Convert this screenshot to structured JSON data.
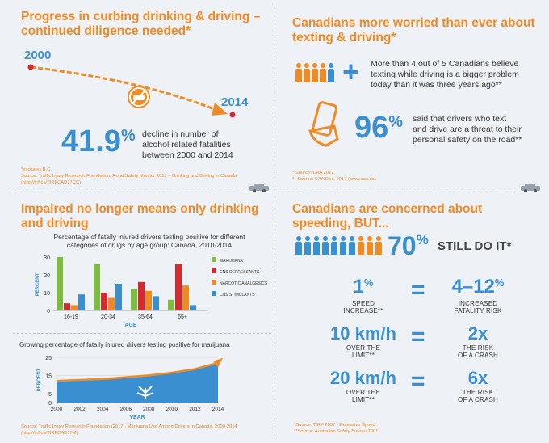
{
  "q1": {
    "title_l1": "Progress in curbing drinking & driving –",
    "title_l2": "continued diligence needed*",
    "year_start": "2000",
    "year_end": "2014",
    "stat": "41.9",
    "stat_pct": "%",
    "desc_l1": "decline in number of",
    "desc_l2": "alcohol related fatalities",
    "desc_l3": "between 2000 and 2014",
    "src_l1": "*excludes B.C.",
    "src_l2": "Source: Traffic Injury Research Foundation, Road Safety Monitor 2017 – Drinking and Driving in Canada",
    "src_l3": "(http://tirf.ca/TIRFCAD17CC)"
  },
  "q2": {
    "title_l1": "Canadians more worried than ever about",
    "title_l2": "texting & driving*",
    "plus": "+",
    "text1_l1": "More than 4 out of 5 Canadians believe",
    "text1_l2": "texting while driving is a bigger problem",
    "text1_l3": "today than it was three years ago**",
    "stat": "96",
    "stat_pct": "%",
    "text2_l1": "said that drivers who text",
    "text2_l2": "and drive are a threat to their",
    "text2_l3": "personal safety on the road**",
    "src_l1": "* Source: CAA 2017",
    "src_l2": "** Source: CAA Dec. 2017 (www.caa.ca)"
  },
  "q3": {
    "title_l1": "Impaired no longer means only drinking",
    "title_l2": "and driving",
    "chart1_title_l1": "Percentage of fatally injured drivers testing positive for different",
    "chart1_title_l2": "categories of drugs by age group: Canada, 2010-2014",
    "chart2_title": "Growing percentage of fatally injured drivers testing positive for marijuana",
    "src_l1": "Source: Traffic Injury Research Foundation (2017). Marijuana Use Among Drivers in Canada, 2000-2014",
    "src_l2": "(http://tirf.ca/TIRFCAD17M)"
  },
  "q4": {
    "title_l1": "Canadians are concerned about",
    "title_l2": "speeding, BUT...",
    "stat": "70",
    "stat_pct": "%",
    "still": "STILL DO IT*",
    "row1_left_num": "1",
    "row1_left_pct": "%",
    "row1_left_cap1": "SPEED",
    "row1_left_cap2": "INCREASE**",
    "row1_right_num": "4–12",
    "row1_right_pct": "%",
    "row1_right_cap1": "INCREASED",
    "row1_right_cap2": "FATALITY RISK",
    "row2_left_num": "10 km/h",
    "row2_left_cap1": "OVER THE",
    "row2_left_cap2": "LIMIT**",
    "row2_right_num": "2x",
    "row2_right_cap1": "THE RISK",
    "row2_right_cap2": "OF A CRASH",
    "row3_left_num": "20 km/h",
    "row3_left_cap1": "OVER THE",
    "row3_left_cap2": "LIMIT**",
    "row3_right_num": "6x",
    "row3_right_cap1": "THE RISK",
    "row3_right_cap2": "OF A CRASH",
    "eq": "=",
    "src_l1": "*Source: TIRF 2007 - Excessive Speed",
    "src_l2": "**Source: Australian Safety Bureau 2001"
  },
  "colors": {
    "orange": "#f08a24",
    "blue": "#3a8fd0",
    "green": "#7dbb42",
    "red": "#d7282f",
    "marijuana": "#7dbb42",
    "cns_depressants": "#d7282f",
    "narcotic": "#f08a24",
    "stimulants": "#3a8fd0"
  },
  "chart_data": [
    {
      "type": "bar",
      "ylabel": "PERCENT",
      "xlabel": "AGE",
      "categories": [
        "16-19",
        "20-34",
        "35-64",
        "65+"
      ],
      "yticks": [
        0,
        10,
        20,
        30
      ],
      "ylim": [
        0,
        30
      ],
      "series": [
        {
          "name": "MARIJUANA",
          "values": [
            30,
            26,
            12,
            6
          ]
        },
        {
          "name": "CNS DEPRESSANTS",
          "values": [
            4,
            10,
            16,
            26
          ]
        },
        {
          "name": "NARCOTIC ANALGESICS",
          "values": [
            3,
            7,
            11,
            14
          ]
        },
        {
          "name": "CNS STIMULANTS",
          "values": [
            9,
            15,
            8,
            3
          ]
        }
      ],
      "legend": "right"
    },
    {
      "type": "area",
      "ylabel": "PERCENT",
      "xlabel": "YEAR",
      "x": [
        2000,
        2002,
        2004,
        2006,
        2008,
        2010,
        2012,
        2014
      ],
      "yticks": [
        0,
        5,
        15,
        25
      ],
      "ylim": [
        0,
        25
      ],
      "values": [
        12,
        12.5,
        13,
        14,
        15,
        16.5,
        18.5,
        22
      ]
    }
  ]
}
